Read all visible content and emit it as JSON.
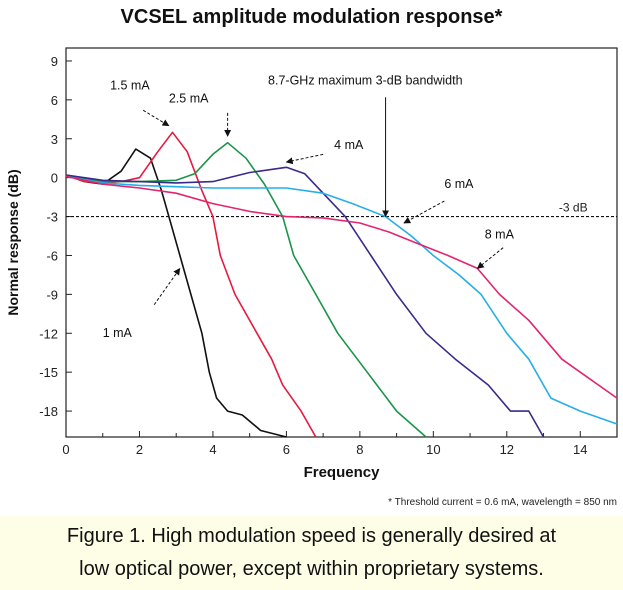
{
  "chart_data": {
    "type": "line",
    "title": "VCSEL amplitude modulation response*",
    "xlabel": "Frequency",
    "ylabel": "Normal response (dB)",
    "xlim": [
      0,
      15
    ],
    "ylim": [
      -20,
      10
    ],
    "xticks": [
      0,
      2,
      4,
      6,
      8,
      10,
      12,
      14
    ],
    "yticks": [
      9,
      6,
      3,
      0,
      -3,
      -6,
      -9,
      -12,
      -15,
      -18
    ],
    "grid": false,
    "reference_line": {
      "y": -3,
      "label": "-3 dB",
      "style": "dashed"
    },
    "series": [
      {
        "name": "1 mA",
        "color": "#111111",
        "x": [
          0,
          0.5,
          1,
          1.5,
          1.9,
          2.3,
          2.6,
          2.8,
          3.1,
          3.4,
          3.7,
          3.9,
          4.1,
          4.4,
          4.8,
          5.3,
          6.0
        ],
        "y": [
          0.2,
          -0.3,
          -0.5,
          0.5,
          2.2,
          1.5,
          -1,
          -3,
          -6,
          -9,
          -12,
          -15,
          -17,
          -18,
          -18.3,
          -19.5,
          -20
        ]
      },
      {
        "name": "1.5 mA",
        "color": "#e8193c",
        "x": [
          0,
          0.5,
          1,
          1.5,
          2,
          2.5,
          2.9,
          3.3,
          3.7,
          4.0,
          4.2,
          4.6,
          5.2,
          5.6,
          5.9,
          6.4,
          6.8
        ],
        "y": [
          0.2,
          -0.3,
          -0.4,
          -0.3,
          0,
          2,
          3.5,
          2,
          -1,
          -3,
          -6,
          -9,
          -12,
          -14,
          -16,
          -18,
          -20
        ]
      },
      {
        "name": "2.5 mA",
        "color": "#1a9448",
        "x": [
          0,
          1,
          2,
          3,
          3.5,
          4,
          4.4,
          4.9,
          5.4,
          5.9,
          6.2,
          6.8,
          7.4,
          8.2,
          9.0,
          9.8
        ],
        "y": [
          0.2,
          -0.3,
          -0.3,
          -0.2,
          0.3,
          1.8,
          2.7,
          1.5,
          -0.5,
          -3,
          -6,
          -9,
          -12,
          -15,
          -18,
          -20
        ]
      },
      {
        "name": "4 mA",
        "color": "#3a2a8a",
        "x": [
          0,
          1,
          2,
          3,
          4,
          5,
          6,
          6.5,
          7.0,
          7.6,
          8.3,
          9.0,
          9.8,
          10.6,
          11.5,
          12.1,
          12.6,
          13.0
        ],
        "y": [
          0.2,
          -0.2,
          -0.3,
          -0.4,
          -0.3,
          0.4,
          0.8,
          0.3,
          -1.2,
          -3,
          -6,
          -9,
          -12,
          -14,
          -16,
          -18,
          -18,
          -20
        ]
      },
      {
        "name": "6 mA",
        "color": "#27aee8",
        "x": [
          0,
          1,
          2,
          3,
          4,
          5,
          6,
          7,
          7.8,
          8.7,
          9.4,
          10.0,
          10.7,
          11.3,
          12.0,
          12.6,
          13.2,
          14.0,
          15.0
        ],
        "y": [
          0.1,
          -0.4,
          -0.6,
          -0.7,
          -0.8,
          -0.8,
          -0.8,
          -1.2,
          -2,
          -3,
          -4.5,
          -6,
          -7.5,
          -9,
          -12,
          -14,
          -17,
          -18,
          -19
        ]
      },
      {
        "name": "8 mA",
        "color": "#e3256f",
        "x": [
          0,
          1,
          2,
          3,
          4,
          5,
          6,
          7,
          8,
          8.8,
          9.5,
          10.4,
          11.2,
          11.8,
          12.6,
          13.5,
          14.0,
          15.0
        ],
        "y": [
          0.1,
          -0.5,
          -0.8,
          -1.2,
          -2,
          -2.6,
          -3,
          -3.1,
          -3.5,
          -4.2,
          -5,
          -6,
          -7,
          -9,
          -11,
          -14,
          -15,
          -17
        ]
      }
    ],
    "annotations": [
      {
        "text": "1 mA",
        "target": [
          3.1,
          -7
        ]
      },
      {
        "text": "1.5 mA",
        "target": [
          2.8,
          4
        ]
      },
      {
        "text": "2.5 mA",
        "target": [
          4.4,
          3.2
        ]
      },
      {
        "text": "4 mA",
        "target": [
          6.0,
          1.2
        ]
      },
      {
        "text": "6 mA",
        "target": [
          9.2,
          -3.5
        ]
      },
      {
        "text": "8 mA",
        "target": [
          11.2,
          -7
        ]
      },
      {
        "text": "8.7-GHz maximum 3-dB bandwidth",
        "target": [
          8.7,
          -3
        ]
      }
    ],
    "footnote": "* Threshold current = 0.6 mA, wavelength = 850 nm"
  },
  "caption": {
    "line1": "Figure 1. High modulation speed is generally desired at",
    "line2": "low optical power, except within proprietary systems."
  }
}
